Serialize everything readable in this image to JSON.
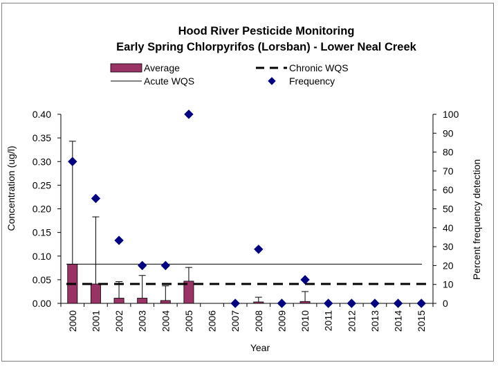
{
  "chart_data": {
    "type": "bar",
    "title": "Hood River Pesticide Monitoring",
    "subtitle": "Early Spring Chlorpyrifos  (Lorsban) - Lower Neal Creek",
    "xlabel": "Year",
    "ylabel": "Concentration (ug/l)",
    "y2label": "Percent frequency detection",
    "ylim": [
      0,
      0.4
    ],
    "y2lim": [
      0,
      100
    ],
    "yticks": [
      "0.00",
      "0.05",
      "0.10",
      "0.15",
      "0.20",
      "0.25",
      "0.30",
      "0.35",
      "0.40"
    ],
    "y2ticks": [
      "0",
      "10",
      "20",
      "30",
      "40",
      "50",
      "60",
      "70",
      "80",
      "90",
      "100"
    ],
    "categories": [
      "2000",
      "2001",
      "2002",
      "2003",
      "2004",
      "2005",
      "2006",
      "2007",
      "2008",
      "2009",
      "2010",
      "2011",
      "2012",
      "2013",
      "2014",
      "2015"
    ],
    "series": [
      {
        "name": "Average",
        "kind": "bar",
        "axis": "left",
        "values": [
          0.083,
          0.041,
          0.011,
          0.011,
          0.006,
          0.047,
          null,
          0,
          0.003,
          0,
          0.004,
          0,
          0,
          0,
          0,
          0
        ],
        "error_upper": [
          0.343,
          0.183,
          0.046,
          0.059,
          0.037,
          0.076,
          null,
          null,
          0.013,
          null,
          0.025,
          null,
          null,
          null,
          null,
          null
        ]
      },
      {
        "name": "Chronic WQS",
        "kind": "line",
        "style": "dashed",
        "axis": "left",
        "value": 0.041
      },
      {
        "name": "Acute WQS",
        "kind": "line",
        "style": "solid",
        "axis": "left",
        "value": 0.083
      },
      {
        "name": "Frequency",
        "kind": "scatter",
        "marker": "diamond",
        "axis": "right",
        "values": [
          75,
          55.5,
          33.3,
          20,
          20,
          100,
          null,
          0,
          28.6,
          0,
          12.5,
          0,
          0,
          0,
          0,
          0
        ]
      }
    ],
    "colors": {
      "bar": "#993366",
      "marker": "#000080",
      "line": "#000000"
    },
    "legend_position": "top"
  }
}
